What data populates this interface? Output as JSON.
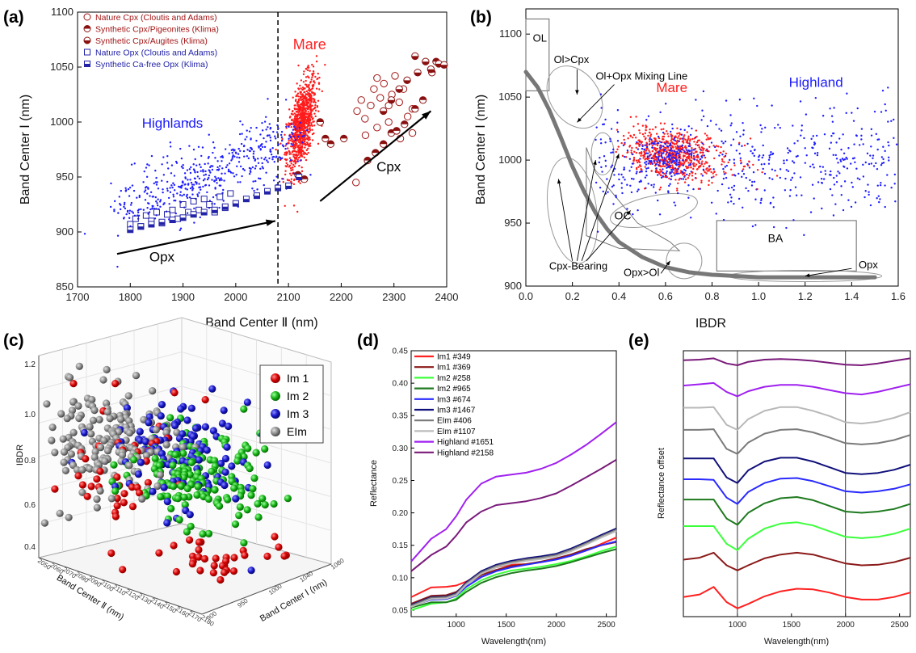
{
  "panels": {
    "a": "(a)",
    "b": "(b)",
    "c": "(c)",
    "d": "(d)",
    "e": "(e)"
  },
  "chart_data": [
    {
      "id": "a",
      "type": "scatter",
      "xlabel": "Band Center Ⅱ (nm)",
      "ylabel": "Band Center Ⅰ (nm)",
      "xlim": [
        1700,
        2400
      ],
      "ylim": [
        850,
        1100
      ],
      "xticks": [
        1700,
        1800,
        1900,
        2000,
        2100,
        2200,
        2300,
        2400
      ],
      "yticks": [
        850,
        900,
        950,
        1000,
        1050,
        1100
      ],
      "vline": 2080,
      "legend_position": "top-left",
      "legend": [
        {
          "label": "Nature Cpx (Cloutis and Adams)",
          "color": "#a31515",
          "marker": "open-circle"
        },
        {
          "label": "Synthetic Cpx/Pigeonites (Klima)",
          "color": "#a31515",
          "marker": "half-circle-top"
        },
        {
          "label": "Synthetic Cpx/Augites (Klima)",
          "color": "#a31515",
          "marker": "half-circle-bottom"
        },
        {
          "label": "Nature Opx (Cloutis and Adams)",
          "color": "#2323a8",
          "marker": "open-square"
        },
        {
          "label": "Synthetic Ca-free Opx (Klima)",
          "color": "#2323a8",
          "marker": "half-square"
        }
      ],
      "annotations": [
        {
          "text": "Mare",
          "x": 2140,
          "y": 1066,
          "color": "#ff2020"
        },
        {
          "text": "Highlands",
          "x": 1880,
          "y": 995,
          "color": "#1a1aff"
        },
        {
          "text": "Cpx",
          "x": 2290,
          "y": 955,
          "color": "#000000"
        },
        {
          "text": "Opx",
          "x": 1860,
          "y": 873,
          "color": "#000000"
        }
      ],
      "arrows": [
        {
          "from": [
            1775,
            880
          ],
          "to": [
            2075,
            910
          ]
        },
        {
          "from": [
            2160,
            928
          ],
          "to": [
            2370,
            1010
          ]
        }
      ],
      "series": [
        {
          "name": "Nature Cpx (Cloutis and Adams)",
          "x": [
            2230,
            2238,
            2245,
            2256,
            2262,
            2268,
            2274,
            2281,
            2290,
            2296,
            2302,
            2310,
            2318,
            2326,
            2335,
            2246,
            2268,
            2290,
            2312,
            2335,
            2228
          ],
          "y": [
            1010,
            1020,
            1003,
            1015,
            1030,
            1040,
            1022,
            1035,
            1015,
            1025,
            1042,
            1018,
            1030,
            1005,
            1012,
            988,
            995,
            1000,
            985,
            990,
            945
          ]
        },
        {
          "name": "Synthetic Cpx/Pigeonites (Klima)",
          "x": [
            2118,
            2130,
            2160,
            2170,
            2180,
            2205,
            2250,
            2265,
            2280,
            2295,
            2305,
            2320,
            2340,
            2355,
            2372,
            2380
          ],
          "y": [
            952,
            948,
            1000,
            985,
            980,
            985,
            965,
            972,
            980,
            990,
            992,
            998,
            1012,
            1020,
            1045,
            1055
          ]
        },
        {
          "name": "Synthetic Cpx/Augites (Klima)",
          "x": [
            2280,
            2295,
            2310,
            2325,
            2340,
            2345,
            2360,
            2370,
            2385,
            2395
          ],
          "y": [
            1010,
            1020,
            1030,
            1038,
            1060,
            1045,
            1055,
            1048,
            1053,
            1052
          ]
        },
        {
          "name": "Nature Opx (Cloutis and Adams)",
          "x": [
            1800,
            1810,
            1820,
            1830,
            1840,
            1850,
            1860,
            1870,
            1880,
            1890,
            1900,
            1910,
            1920,
            1930,
            1940,
            1950,
            1960,
            1970,
            1980,
            1990
          ],
          "y": [
            907,
            912,
            905,
            915,
            910,
            918,
            908,
            916,
            920,
            912,
            925,
            918,
            928,
            920,
            930,
            925,
            918,
            932,
            922,
            935
          ]
        },
        {
          "name": "Synthetic Ca-free Opx (Klima)",
          "x": [
            1800,
            1820,
            1840,
            1860,
            1880,
            1900,
            1920,
            1940,
            1960,
            1980,
            2000,
            2020,
            2040,
            2060,
            2080,
            2100,
            2120
          ],
          "y": [
            902,
            905,
            907,
            909,
            911,
            913,
            916,
            918,
            920,
            923,
            926,
            930,
            933,
            937,
            940,
            942,
            950
          ]
        }
      ],
      "scatter_clouds": [
        {
          "name": "Mare",
          "color": "#ff1c1c",
          "center": [
            2125,
            998
          ],
          "spread": [
            14,
            18
          ]
        },
        {
          "name": "Highlands",
          "color": "#1e1eff",
          "center": [
            1960,
            948
          ],
          "spread": [
            70,
            26
          ]
        }
      ]
    },
    {
      "id": "b",
      "type": "scatter",
      "xlabel": "IBDR",
      "ylabel": "Band Center Ⅰ (nm)",
      "xlim": [
        0.0,
        1.6
      ],
      "ylim": [
        900,
        1120
      ],
      "xticks": [
        0.0,
        0.2,
        0.4,
        0.6,
        0.8,
        1.0,
        1.2,
        1.4,
        1.6
      ],
      "yticks": [
        900,
        950,
        1000,
        1050,
        1100
      ],
      "annotations": [
        {
          "text": "Mare",
          "x": 0.56,
          "y": 1054,
          "color": "#ff2020"
        },
        {
          "text": "Highland",
          "x": 1.13,
          "y": 1058,
          "color": "#1a1aff"
        },
        {
          "text": "OL",
          "x": 0.03,
          "y": 1094,
          "color": "#000000"
        },
        {
          "text": "Ol>Cpx",
          "x": 0.12,
          "y": 1077,
          "color": "#000000"
        },
        {
          "text": "Ol+Opx Mixing Line",
          "x": 0.3,
          "y": 1064,
          "color": "#000000"
        },
        {
          "text": "OC",
          "x": 0.38,
          "y": 953,
          "color": "#000000"
        },
        {
          "text": "BA",
          "x": 1.04,
          "y": 935,
          "color": "#000000"
        },
        {
          "text": "Cpx-Bearing",
          "x": 0.1,
          "y": 913,
          "color": "#000000"
        },
        {
          "text": "Opx>Ol",
          "x": 0.42,
          "y": 908,
          "color": "#000000"
        },
        {
          "text": "Opx",
          "x": 1.43,
          "y": 914,
          "color": "#000000"
        }
      ],
      "mixing_line": {
        "x": [
          0.0,
          0.05,
          0.1,
          0.15,
          0.2,
          0.25,
          0.3,
          0.35,
          0.4,
          0.5,
          0.6,
          0.7,
          0.8,
          0.9,
          1.0,
          1.2,
          1.4,
          1.5
        ],
        "y": [
          1070,
          1058,
          1040,
          1018,
          995,
          975,
          958,
          945,
          935,
          923,
          915,
          911,
          909,
          908,
          907,
          907,
          907,
          907
        ]
      },
      "scatter_clouds": [
        {
          "name": "Mare",
          "color": "#ff1c1c",
          "center": [
            0.62,
            1003
          ],
          "spread": [
            0.09,
            10
          ]
        },
        {
          "name": "Highland",
          "color": "#1e1eff",
          "center": [
            0.95,
            1000
          ],
          "spread": [
            0.35,
            22
          ]
        }
      ]
    },
    {
      "id": "c",
      "type": "scatter",
      "xlabel": "Band Center Ⅱ (nm)",
      "ylabel": "IBDR",
      "zlabel": "Band Center Ⅰ (nm)",
      "yticks": [
        0.4,
        0.6,
        0.8,
        1.0,
        1.2
      ],
      "xticks": [
        2050,
        2060,
        2070,
        2080,
        2090,
        2100,
        2110,
        2120,
        2130,
        2140,
        2150,
        2160,
        2170,
        2180
      ],
      "zticks": [
        900,
        950,
        1000,
        1040,
        1080
      ],
      "legend_position": "top-right",
      "legend": [
        {
          "label": "Im 1",
          "color": "#e01010"
        },
        {
          "label": "Im 2",
          "color": "#19c419"
        },
        {
          "label": "Im 3",
          "color": "#1313c4"
        },
        {
          "label": "EIm",
          "color": "#808080"
        }
      ]
    },
    {
      "id": "d",
      "type": "line",
      "xlabel": "Wavelength(nm)",
      "ylabel": "Reflectance",
      "xlim": [
        550,
        2600
      ],
      "ylim": [
        0.04,
        0.45
      ],
      "xticks": [
        1000,
        1500,
        2000,
        2500
      ],
      "yticks": [
        0.05,
        0.1,
        0.15,
        0.2,
        0.25,
        0.3,
        0.35,
        0.4,
        0.45
      ],
      "legend_position": "top-left",
      "x": [
        550,
        750,
        900,
        1000,
        1100,
        1250,
        1400,
        1550,
        1700,
        1850,
        2000,
        2150,
        2300,
        2450,
        2600
      ],
      "series": [
        {
          "name": "Im1 #349",
          "color": "#ff2020",
          "values": [
            0.07,
            0.085,
            0.086,
            0.088,
            0.094,
            0.106,
            0.116,
            0.12,
            0.121,
            0.124,
            0.129,
            0.134,
            0.142,
            0.152,
            0.162
          ]
        },
        {
          "name": "Im1 #369",
          "color": "#8b1a1a",
          "values": [
            0.06,
            0.072,
            0.073,
            0.078,
            0.09,
            0.104,
            0.112,
            0.118,
            0.121,
            0.125,
            0.13,
            0.136,
            0.144,
            0.15,
            0.155
          ]
        },
        {
          "name": "Im2 #258",
          "color": "#3cff3c",
          "values": [
            0.05,
            0.06,
            0.062,
            0.068,
            0.082,
            0.096,
            0.105,
            0.111,
            0.114,
            0.117,
            0.121,
            0.126,
            0.133,
            0.141,
            0.148
          ]
        },
        {
          "name": "Im2 #965",
          "color": "#1e7a1e",
          "values": [
            0.054,
            0.062,
            0.062,
            0.066,
            0.078,
            0.092,
            0.101,
            0.107,
            0.111,
            0.114,
            0.118,
            0.124,
            0.131,
            0.138,
            0.144
          ]
        },
        {
          "name": "Im3 #674",
          "color": "#2a2aff",
          "values": [
            0.056,
            0.066,
            0.067,
            0.072,
            0.086,
            0.101,
            0.11,
            0.116,
            0.12,
            0.124,
            0.128,
            0.134,
            0.142,
            0.15,
            0.156
          ]
        },
        {
          "name": "Im3 #1467",
          "color": "#10107a",
          "values": [
            0.058,
            0.07,
            0.071,
            0.076,
            0.093,
            0.11,
            0.12,
            0.126,
            0.13,
            0.133,
            0.137,
            0.145,
            0.155,
            0.166,
            0.176
          ]
        },
        {
          "name": "EIm #406",
          "color": "#7a7a7a",
          "values": [
            0.057,
            0.069,
            0.07,
            0.075,
            0.091,
            0.108,
            0.118,
            0.124,
            0.128,
            0.131,
            0.135,
            0.143,
            0.153,
            0.164,
            0.174
          ]
        },
        {
          "name": "EIm #1107",
          "color": "#bcbcbc",
          "values": [
            0.055,
            0.067,
            0.068,
            0.073,
            0.089,
            0.106,
            0.116,
            0.122,
            0.126,
            0.129,
            0.133,
            0.141,
            0.151,
            0.162,
            0.172
          ]
        },
        {
          "name": "Highland #1651",
          "color": "#a020f0",
          "values": [
            0.125,
            0.16,
            0.175,
            0.195,
            0.22,
            0.245,
            0.256,
            0.259,
            0.262,
            0.268,
            0.277,
            0.29,
            0.305,
            0.322,
            0.34
          ]
        },
        {
          "name": "Highland #2158",
          "color": "#7a1a7a",
          "values": [
            0.11,
            0.135,
            0.148,
            0.165,
            0.185,
            0.202,
            0.212,
            0.215,
            0.218,
            0.223,
            0.23,
            0.242,
            0.255,
            0.268,
            0.282
          ]
        }
      ]
    },
    {
      "id": "e",
      "type": "line",
      "xlabel": "Wavelength(nm)",
      "ylabel": "Reflectance offset",
      "xlim": [
        500,
        2600
      ],
      "xticks": [
        1000,
        1500,
        2000,
        2500
      ],
      "vlines": [
        1000,
        2000
      ],
      "x": [
        500,
        650,
        780,
        900,
        1000,
        1100,
        1250,
        1400,
        1550,
        1700,
        1850,
        2000,
        2150,
        2300,
        2450,
        2600
      ],
      "series": [
        {
          "color": "#7a1a7a",
          "values": [
            0.96,
            0.962,
            0.966,
            0.95,
            0.944,
            0.955,
            0.962,
            0.964,
            0.962,
            0.958,
            0.952,
            0.946,
            0.944,
            0.95,
            0.958,
            0.966
          ]
        },
        {
          "color": "#a020f0",
          "values": [
            0.88,
            0.884,
            0.888,
            0.86,
            0.846,
            0.862,
            0.876,
            0.882,
            0.882,
            0.876,
            0.866,
            0.856,
            0.852,
            0.86,
            0.872,
            0.884
          ]
        },
        {
          "color": "#b8b8b8",
          "values": [
            0.81,
            0.81,
            0.812,
            0.756,
            0.74,
            0.774,
            0.8,
            0.812,
            0.812,
            0.8,
            0.784,
            0.764,
            0.76,
            0.766,
            0.778,
            0.796
          ]
        },
        {
          "color": "#7a7a7a",
          "values": [
            0.74,
            0.74,
            0.742,
            0.68,
            0.664,
            0.7,
            0.728,
            0.74,
            0.742,
            0.732,
            0.716,
            0.698,
            0.694,
            0.698,
            0.708,
            0.724
          ]
        },
        {
          "color": "#10107a",
          "values": [
            0.65,
            0.65,
            0.65,
            0.59,
            0.572,
            0.612,
            0.64,
            0.652,
            0.652,
            0.64,
            0.622,
            0.604,
            0.6,
            0.604,
            0.614,
            0.63
          ]
        },
        {
          "color": "#2a2aff",
          "values": [
            0.584,
            0.584,
            0.582,
            0.526,
            0.506,
            0.544,
            0.572,
            0.586,
            0.588,
            0.578,
            0.562,
            0.546,
            0.542,
            0.546,
            0.554,
            0.568
          ]
        },
        {
          "color": "#1e7a1e",
          "values": [
            0.52,
            0.52,
            0.52,
            0.46,
            0.44,
            0.478,
            0.508,
            0.524,
            0.528,
            0.518,
            0.5,
            0.482,
            0.478,
            0.482,
            0.49,
            0.506
          ]
        },
        {
          "color": "#3cff3c",
          "values": [
            0.436,
            0.436,
            0.436,
            0.38,
            0.36,
            0.396,
            0.428,
            0.444,
            0.448,
            0.438,
            0.42,
            0.402,
            0.398,
            0.402,
            0.412,
            0.428
          ]
        },
        {
          "color": "#8b1a1a",
          "values": [
            0.33,
            0.336,
            0.352,
            0.312,
            0.296,
            0.312,
            0.334,
            0.346,
            0.352,
            0.346,
            0.332,
            0.318,
            0.312,
            0.314,
            0.322,
            0.336
          ]
        },
        {
          "color": "#ff2020",
          "values": [
            0.212,
            0.22,
            0.244,
            0.196,
            0.176,
            0.19,
            0.214,
            0.23,
            0.238,
            0.236,
            0.226,
            0.212,
            0.204,
            0.204,
            0.212,
            0.226
          ]
        }
      ]
    }
  ]
}
